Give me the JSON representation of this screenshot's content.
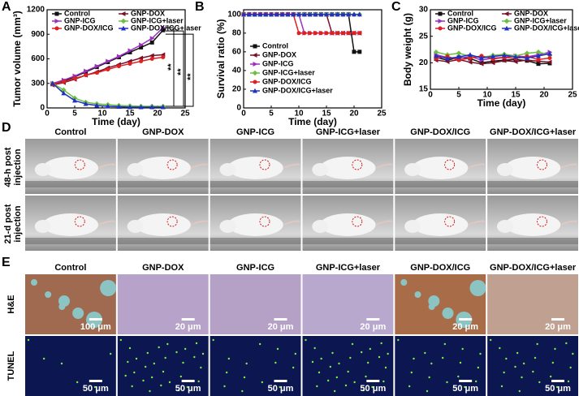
{
  "chart_data": [
    {
      "type": "line",
      "panel": "A",
      "x_label": "Time (day)",
      "y_label": "Tumor volume (mm³)",
      "xlim": [
        0,
        25
      ],
      "xticks": [
        0,
        5,
        10,
        15,
        20,
        25
      ],
      "ylim": [
        0,
        1200
      ],
      "yticks": [
        0,
        300,
        600,
        900,
        1200
      ],
      "legend": "top",
      "annotations": [
        "**",
        "**",
        "**"
      ],
      "x": [
        1,
        3,
        5,
        7,
        9,
        11,
        13,
        15,
        17,
        19,
        21
      ],
      "series": [
        {
          "name": "Control",
          "color": "#111111",
          "marker": "square",
          "values": [
            290,
            330,
            380,
            440,
            500,
            560,
            620,
            680,
            740,
            800,
            950
          ]
        },
        {
          "name": "GNP-DOX",
          "color": "#7a1028",
          "marker": "triangle-left",
          "values": [
            280,
            310,
            350,
            400,
            440,
            490,
            530,
            570,
            610,
            640,
            650
          ]
        },
        {
          "name": "GNP-ICG",
          "color": "#9b30c0",
          "marker": "triangle-right",
          "values": [
            300,
            340,
            390,
            450,
            510,
            570,
            630,
            700,
            770,
            850,
            980
          ]
        },
        {
          "name": "GNP-ICG+laser",
          "color": "#6cc040",
          "marker": "diamond",
          "values": [
            300,
            220,
            120,
            70,
            50,
            40,
            30,
            25,
            20,
            20,
            20
          ]
        },
        {
          "name": "GNP-DOX/ICG",
          "color": "#e02020",
          "marker": "circle",
          "values": [
            290,
            320,
            360,
            400,
            430,
            470,
            510,
            540,
            570,
            600,
            620
          ]
        },
        {
          "name": "GNP-DOX/ICG+laser",
          "color": "#2030c0",
          "marker": "triangle-up",
          "values": [
            300,
            180,
            90,
            50,
            30,
            20,
            15,
            10,
            10,
            10,
            10
          ]
        }
      ]
    },
    {
      "type": "line",
      "panel": "B",
      "x_label": "Time (day)",
      "y_label": "Survival ratio (%)",
      "xlim": [
        0,
        25
      ],
      "xticks": [
        0,
        5,
        10,
        15,
        20,
        25
      ],
      "ylim": [
        0,
        105
      ],
      "yticks": [
        0,
        20,
        40,
        60,
        80,
        100
      ],
      "legend": "lower left",
      "x": [
        0,
        1,
        2,
        3,
        4,
        5,
        6,
        7,
        8,
        9,
        10,
        11,
        12,
        13,
        14,
        15,
        16,
        17,
        18,
        19,
        20,
        21
      ],
      "series": [
        {
          "name": "Control",
          "color": "#111111",
          "marker": "square",
          "values": [
            100,
            100,
            100,
            100,
            100,
            100,
            100,
            100,
            100,
            100,
            100,
            100,
            100,
            100,
            100,
            100,
            100,
            100,
            100,
            100,
            60,
            60
          ]
        },
        {
          "name": "GNP-DOX",
          "color": "#7a1028",
          "marker": "triangle-left",
          "values": [
            100,
            100,
            100,
            100,
            100,
            100,
            100,
            100,
            100,
            100,
            100,
            100,
            100,
            100,
            100,
            100,
            80,
            80,
            80,
            80,
            80,
            80
          ]
        },
        {
          "name": "GNP-ICG",
          "color": "#9b30c0",
          "marker": "triangle-right",
          "values": [
            100,
            100,
            100,
            100,
            100,
            100,
            100,
            100,
            100,
            100,
            100,
            80,
            80,
            80,
            80,
            80,
            80,
            80,
            80,
            80,
            80,
            80
          ]
        },
        {
          "name": "GNP-ICG+laser",
          "color": "#6cc040",
          "marker": "diamond",
          "values": [
            100,
            100,
            100,
            100,
            100,
            100,
            100,
            100,
            100,
            100,
            100,
            100,
            100,
            100,
            100,
            100,
            100,
            100,
            100,
            100,
            100,
            100
          ]
        },
        {
          "name": "GNP-DOX/ICG",
          "color": "#e02020",
          "marker": "circle",
          "values": [
            100,
            100,
            100,
            100,
            100,
            100,
            100,
            100,
            100,
            100,
            80,
            80,
            80,
            80,
            80,
            80,
            80,
            80,
            80,
            80,
            80,
            80
          ]
        },
        {
          "name": "GNP-DOX/ICG+laser",
          "color": "#2030c0",
          "marker": "triangle-up",
          "values": [
            100,
            100,
            100,
            100,
            100,
            100,
            100,
            100,
            100,
            100,
            100,
            100,
            100,
            100,
            100,
            100,
            100,
            100,
            100,
            100,
            100,
            100
          ]
        }
      ]
    },
    {
      "type": "line",
      "panel": "C",
      "x_label": "Time (day)",
      "y_label": "Body weight (g)",
      "xlim": [
        0,
        25
      ],
      "xticks": [
        0,
        5,
        10,
        15,
        20,
        25
      ],
      "ylim": [
        15,
        30
      ],
      "yticks": [
        15,
        20,
        25,
        30
      ],
      "legend": "top",
      "x": [
        1,
        3,
        5,
        7,
        9,
        11,
        13,
        15,
        17,
        19,
        21
      ],
      "series": [
        {
          "name": "Control",
          "color": "#111111",
          "marker": "square",
          "values": [
            21,
            20.5,
            21,
            20.8,
            20,
            20.3,
            20.5,
            20.6,
            20.4,
            19.8,
            19.9
          ]
        },
        {
          "name": "GNP-DOX",
          "color": "#7a1028",
          "marker": "triangle-left",
          "values": [
            20.5,
            20.2,
            20.6,
            20.1,
            19.8,
            20,
            20.4,
            20.2,
            20.5,
            20.3,
            20.1
          ]
        },
        {
          "name": "GNP-ICG",
          "color": "#9b30c0",
          "marker": "triangle-right",
          "values": [
            21.5,
            21,
            20.8,
            21.2,
            20.5,
            20.9,
            21,
            21.3,
            21.1,
            21.5,
            22
          ]
        },
        {
          "name": "GNP-ICG+laser",
          "color": "#6cc040",
          "marker": "diamond",
          "values": [
            22,
            21.5,
            21.8,
            21.2,
            21,
            21.4,
            21.6,
            21.3,
            21.8,
            22,
            21.5
          ]
        },
        {
          "name": "GNP-DOX/ICG",
          "color": "#e02020",
          "marker": "circle",
          "values": [
            20.8,
            21.2,
            20.5,
            20.9,
            21.3,
            20.7,
            21,
            20.8,
            21.2,
            20.6,
            20.9
          ]
        },
        {
          "name": "GNP-DOX/ICG+laser",
          "color": "#2030c0",
          "marker": "triangle-up",
          "values": [
            21.3,
            20.8,
            21.1,
            21.5,
            20.9,
            21.2,
            21.4,
            21.1,
            20.9,
            21.3,
            21.7
          ]
        }
      ]
    }
  ],
  "photos": {
    "panel": "D",
    "columns": [
      "Control",
      "GNP-DOX",
      "GNP-ICG",
      "GNP-ICG+laser",
      "GNP-DOX/ICG",
      "GNP-DOX/ICG+laser"
    ],
    "rows": [
      [
        "48-h post",
        "injection"
      ],
      [
        "21-d post",
        "injection"
      ]
    ]
  },
  "histology": {
    "panel": "E",
    "columns": [
      "Control",
      "GNP-DOX",
      "GNP-ICG",
      "GNP-ICG+laser",
      "GNP-DOX/ICG",
      "GNP-DOX/ICG+laser"
    ],
    "rows": [
      "H&E",
      "TUNEL"
    ],
    "scale_bars": [
      [
        "100 μm",
        "20 μm",
        "20 μm",
        "20 μm",
        "20 μm",
        "20 μm"
      ],
      [
        "50 μm",
        "50 μm",
        "50 μm",
        "50 μm",
        "50 μm",
        "50 μm"
      ]
    ]
  }
}
